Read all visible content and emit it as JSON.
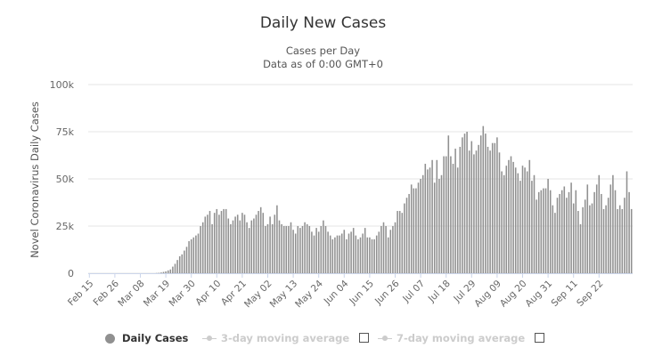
{
  "chart_data": {
    "type": "bar",
    "title": "Daily New Cases",
    "subtitle": [
      "Cases per Day",
      "Data as of 0:00 GMT+0"
    ],
    "ylabel": "Novel Coronavirus Daily Cases",
    "xlabel": "",
    "ylim": [
      0,
      100000
    ],
    "y_ticks": [
      0,
      25000,
      50000,
      75000,
      100000
    ],
    "y_tick_labels": [
      "0",
      "25k",
      "50k",
      "75k",
      "100k"
    ],
    "x_tick_labels": [
      "Feb 15",
      "Feb 26",
      "Mar 08",
      "Mar 19",
      "Mar 30",
      "Apr 10",
      "Apr 21",
      "May 02",
      "May 13",
      "May 24",
      "Jun 04",
      "Jun 15",
      "Jun 26",
      "Jul 07",
      "Jul 18",
      "Jul 29",
      "Aug 09",
      "Aug 20",
      "Aug 31",
      "Sep 11",
      "Sep 22"
    ],
    "grid": "horizontal",
    "legend_placement": "bottom-center",
    "colors": {
      "bar": "#909090",
      "grid": "#e6e6e6",
      "axis": "#ccd6eb",
      "inactive": "#cccccc"
    },
    "series": [
      {
        "name": "Daily Cases",
        "x_start": "2020-02-15",
        "values": [
          0,
          0,
          0,
          0,
          0,
          0,
          0,
          0,
          0,
          0,
          0,
          0,
          0,
          0,
          0,
          0,
          0,
          0,
          0,
          0,
          0,
          0,
          0,
          0,
          0,
          0,
          0,
          0,
          0,
          100,
          200,
          400,
          700,
          1000,
          1500,
          2000,
          3500,
          5000,
          7000,
          9000,
          10000,
          12000,
          14000,
          17000,
          18000,
          19000,
          20000,
          21000,
          25000,
          27000,
          30000,
          31000,
          33000,
          26000,
          32000,
          34000,
          31000,
          33000,
          34000,
          34000,
          29000,
          26000,
          28000,
          30000,
          31000,
          28000,
          32000,
          31000,
          27000,
          24000,
          28000,
          29000,
          31000,
          33000,
          35000,
          32000,
          25000,
          26000,
          30000,
          26000,
          31000,
          36000,
          28000,
          26000,
          25000,
          25000,
          25000,
          27000,
          23000,
          21000,
          25000,
          24000,
          25000,
          27000,
          26000,
          25000,
          22000,
          20000,
          24000,
          22000,
          25000,
          28000,
          25000,
          22000,
          20000,
          18000,
          19000,
          20000,
          20000,
          21000,
          23000,
          18000,
          21000,
          22000,
          24000,
          20000,
          18000,
          19000,
          21000,
          24000,
          19000,
          19000,
          18000,
          18000,
          20000,
          22000,
          25000,
          27000,
          25000,
          19000,
          23000,
          25000,
          27000,
          33000,
          33000,
          32000,
          37000,
          40000,
          42000,
          47000,
          45000,
          45000,
          48000,
          50000,
          52000,
          58000,
          55000,
          56000,
          60000,
          48000,
          60000,
          50000,
          52000,
          62000,
          62000,
          73000,
          62000,
          58000,
          66000,
          56000,
          67000,
          72000,
          74000,
          75000,
          65000,
          70000,
          63000,
          65000,
          68000,
          73000,
          78000,
          74000,
          67000,
          65000,
          69000,
          69000,
          72000,
          64000,
          54000,
          52000,
          57000,
          60000,
          62000,
          59000,
          56000,
          53000,
          49000,
          57000,
          56000,
          54000,
          60000,
          49000,
          52000,
          39000,
          43000,
          44000,
          45000,
          45000,
          50000,
          44000,
          36000,
          32000,
          40000,
          42000,
          44000,
          46000,
          40000,
          43000,
          48000,
          37000,
          44000,
          33000,
          26000,
          35000,
          39000,
          47000,
          36000,
          37000,
          43000,
          47000,
          52000,
          42000,
          34000,
          36000,
          40000,
          47000,
          52000,
          44000,
          34000,
          36000,
          34000,
          40000,
          54000,
          43000,
          34000
        ]
      }
    ]
  },
  "legend": {
    "items": [
      {
        "label": "Daily Cases",
        "active": true
      },
      {
        "label": "3-day moving average",
        "active": false
      },
      {
        "label": "7-day moving average",
        "active": false
      }
    ]
  }
}
